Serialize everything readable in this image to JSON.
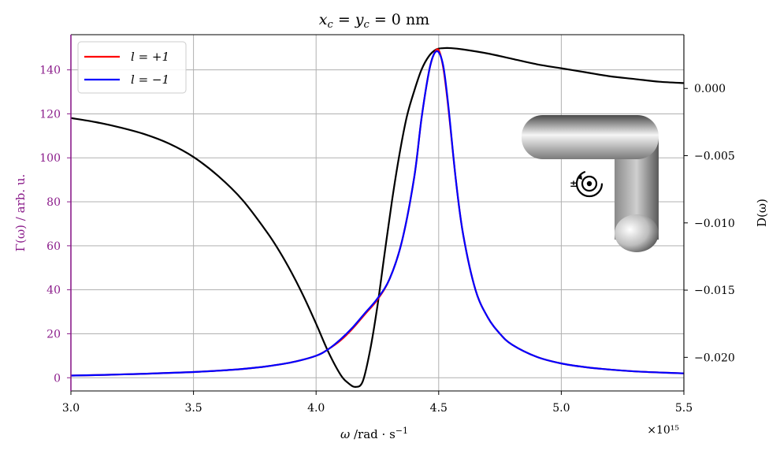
{
  "chart_data": {
    "type": "line",
    "title": "x_c = y_c = 0 nm",
    "xlabel": "ω /rad · s⁻¹",
    "x_multiplier": "×10¹⁵",
    "ylabel_left": "Γ(ω) / arb. u.",
    "ylabel_right": "D(ω)",
    "xlim": [
      3.0,
      5.5
    ],
    "ylim_left": [
      -6,
      156
    ],
    "ylim_right": [
      -0.0225,
      0.004
    ],
    "x_ticks": [
      3.0,
      3.5,
      4.0,
      4.5,
      5.0,
      5.5
    ],
    "x_tick_labels": [
      "3.0",
      "3.5",
      "4.0",
      "4.5",
      "5.0",
      "5.5"
    ],
    "y_left_ticks": [
      0,
      20,
      40,
      60,
      80,
      100,
      120,
      140
    ],
    "y_left_tick_labels": [
      "0",
      "20",
      "40",
      "60",
      "80",
      "100",
      "120",
      "140"
    ],
    "y_right_ticks": [
      0.0,
      -0.005,
      -0.01,
      -0.015,
      -0.02
    ],
    "y_right_tick_labels": [
      "0.000",
      "−0.005",
      "−0.010",
      "−0.015",
      "−0.020"
    ],
    "grid": true,
    "legend_position": "top-left",
    "series": [
      {
        "name": "l = +1",
        "axis": "left",
        "color": "#ff0000",
        "x": [
          3.0,
          3.1,
          3.2,
          3.3,
          3.4,
          3.5,
          3.6,
          3.7,
          3.8,
          3.9,
          4.0,
          4.05,
          4.1,
          4.15,
          4.2,
          4.25,
          4.3,
          4.35,
          4.4,
          4.43,
          4.46,
          4.48,
          4.5,
          4.52,
          4.54,
          4.57,
          4.6,
          4.65,
          4.7,
          4.75,
          4.8,
          4.9,
          5.0,
          5.1,
          5.2,
          5.3,
          5.4,
          5.5
        ],
        "y": [
          1.0,
          1.2,
          1.5,
          1.8,
          2.2,
          2.6,
          3.2,
          4.0,
          5.2,
          7.0,
          10.0,
          13.0,
          17.0,
          22.5,
          29.0,
          35.5,
          45.0,
          62.0,
          91.0,
          118.0,
          139.0,
          147.0,
          149.0,
          140.0,
          122.0,
          90.0,
          65.0,
          40.0,
          27.5,
          20.0,
          15.0,
          9.5,
          6.5,
          4.8,
          3.7,
          2.9,
          2.4,
          2.0
        ]
      },
      {
        "name": "l = −1",
        "axis": "left",
        "color": "#0000ff",
        "x": [
          3.0,
          3.1,
          3.2,
          3.3,
          3.4,
          3.5,
          3.6,
          3.7,
          3.8,
          3.9,
          4.0,
          4.05,
          4.1,
          4.15,
          4.2,
          4.25,
          4.3,
          4.35,
          4.4,
          4.43,
          4.46,
          4.48,
          4.5,
          4.52,
          4.54,
          4.57,
          4.6,
          4.65,
          4.7,
          4.75,
          4.8,
          4.9,
          5.0,
          5.1,
          5.2,
          5.3,
          5.4,
          5.5
        ],
        "y": [
          1.0,
          1.2,
          1.5,
          1.8,
          2.2,
          2.6,
          3.2,
          4.0,
          5.2,
          7.0,
          10.0,
          13.0,
          17.5,
          23.0,
          29.5,
          36.0,
          45.0,
          62.0,
          91.0,
          118.0,
          139.0,
          147.0,
          148.0,
          141.0,
          123.0,
          90.0,
          65.0,
          40.0,
          27.5,
          20.0,
          15.0,
          9.5,
          6.5,
          4.8,
          3.7,
          2.9,
          2.4,
          2.0
        ]
      },
      {
        "name": "",
        "axis": "right",
        "color": "#000000",
        "x": [
          3.0,
          3.1,
          3.2,
          3.3,
          3.4,
          3.5,
          3.6,
          3.7,
          3.8,
          3.85,
          3.9,
          3.95,
          4.0,
          4.05,
          4.1,
          4.13,
          4.16,
          4.19,
          4.22,
          4.25,
          4.28,
          4.31,
          4.34,
          4.37,
          4.4,
          4.43,
          4.46,
          4.49,
          4.52,
          4.55,
          4.6,
          4.7,
          4.8,
          4.9,
          5.0,
          5.1,
          5.2,
          5.3,
          5.4,
          5.5
        ],
        "y": [
          -0.0022,
          -0.0025,
          -0.0029,
          -0.0034,
          -0.0041,
          -0.0051,
          -0.0065,
          -0.0083,
          -0.0107,
          -0.0121,
          -0.0137,
          -0.0155,
          -0.0175,
          -0.0196,
          -0.0213,
          -0.0219,
          -0.0222,
          -0.0218,
          -0.0195,
          -0.0162,
          -0.0122,
          -0.0083,
          -0.0049,
          -0.0021,
          -0.0002,
          0.0014,
          0.0024,
          0.0029,
          0.003,
          0.003,
          0.0029,
          0.0026,
          0.0022,
          0.0018,
          0.0015,
          0.0012,
          0.0009,
          0.0007,
          0.0005,
          0.0004
        ]
      }
    ]
  }
}
